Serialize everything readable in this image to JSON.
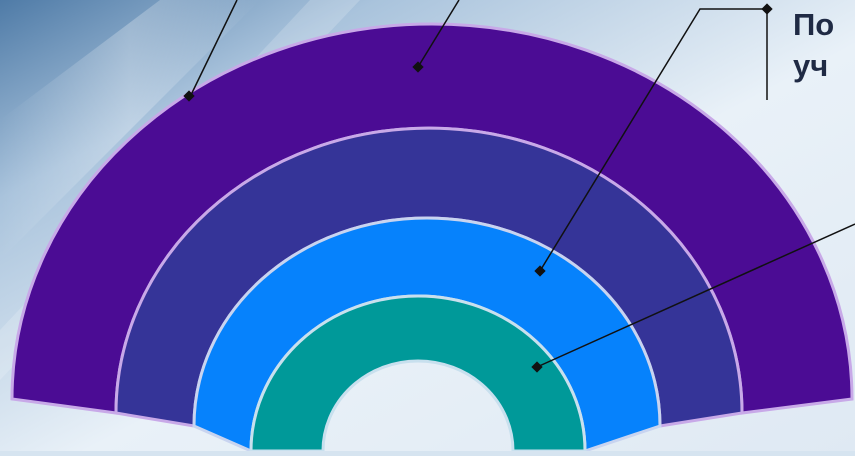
{
  "caption": {
    "line1": "По",
    "line2": "уч"
  },
  "colors": {
    "background_light": "#eef4fa",
    "background_mid": "#c9d9e8",
    "background_dark": "#4f7ba7",
    "arc_outer": "#4b0c94",
    "arc_second": "#353498",
    "arc_third": "#0682fc",
    "arc_inner": "#009999",
    "arc_stroke": "#c8a9e8",
    "leader_line": "#111111",
    "caption_text": "#1f2a44"
  }
}
